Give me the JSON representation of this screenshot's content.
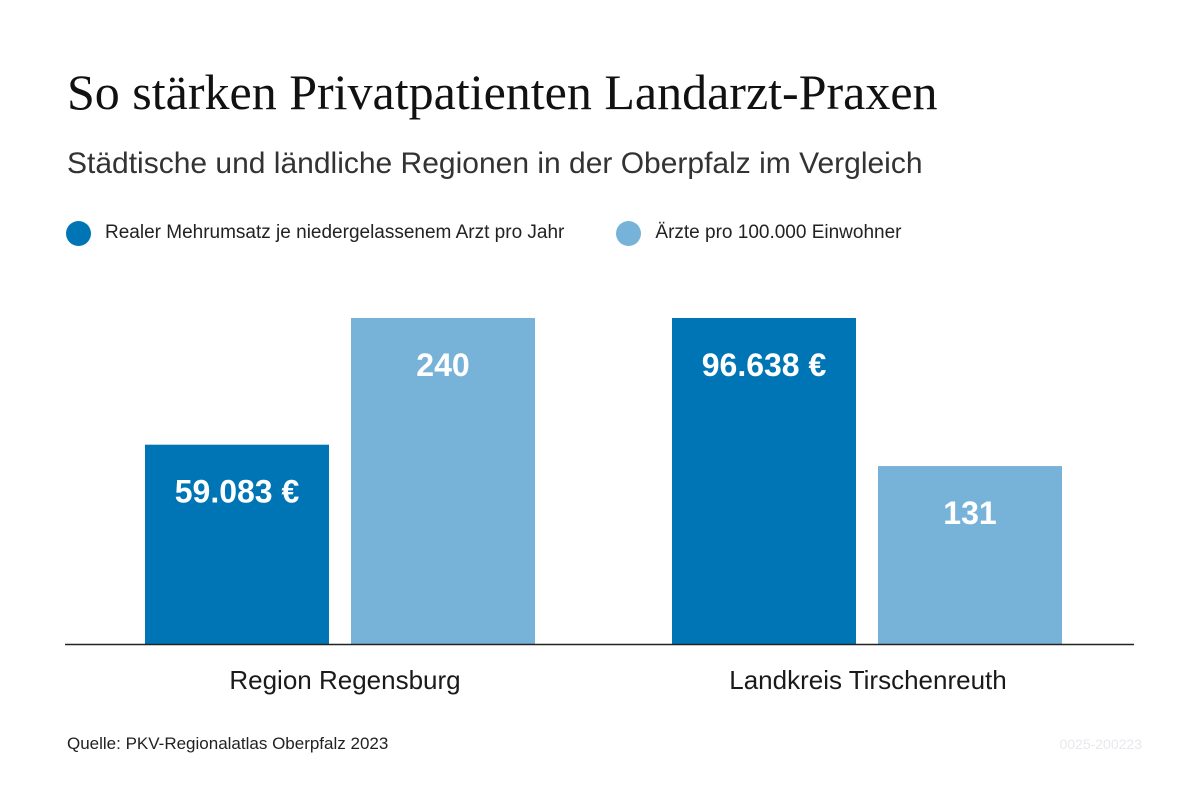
{
  "title": "So stärken Privatpatienten Landarzt-Praxen",
  "subtitle": "Städtische und ländliche Regionen in der Oberpfalz im Vergleich",
  "source": "Quelle: PKV-Regionalatlas Oberpfalz 2023",
  "code": "0025-200223",
  "colors": {
    "dark": "#0075b5",
    "light": "#77b3d8",
    "axis": "#222222"
  },
  "chart_data": {
    "type": "bar",
    "categories": [
      "Region Regensburg",
      "Landkreis Tirschenreuth"
    ],
    "series": [
      {
        "name": "Realer Mehrumsatz je niedergelassenem Arzt pro Jahr",
        "values": [
          59083,
          96638
        ],
        "labels": [
          "59.083 €",
          "96.638 €"
        ],
        "color": "#0075b5"
      },
      {
        "name": "Ärzte pro 100.000 Einwohner",
        "values": [
          240,
          131
        ],
        "labels": [
          "240",
          "131"
        ],
        "color": "#77b3d8"
      }
    ]
  }
}
